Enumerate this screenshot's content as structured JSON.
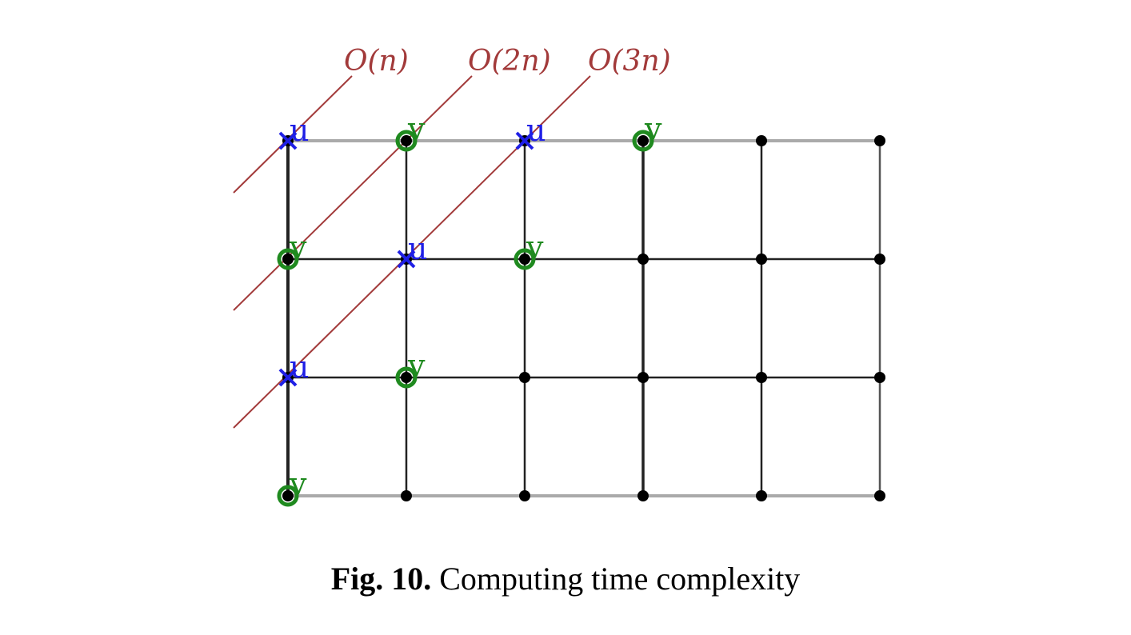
{
  "diagram": {
    "complexity_lines": [
      {
        "label": "O(n)"
      },
      {
        "label": "O(2n)"
      },
      {
        "label": "O(3n)"
      }
    ],
    "grid": {
      "columns": 6,
      "rows": 4
    },
    "vertex_markers": {
      "u": "u",
      "v": "v",
      "u_vertices": [
        [
          0,
          0
        ],
        [
          2,
          0
        ],
        [
          1,
          1
        ],
        [
          0,
          2
        ]
      ],
      "v_vertices": [
        [
          1,
          0
        ],
        [
          3,
          0
        ],
        [
          0,
          1
        ],
        [
          2,
          1
        ],
        [
          1,
          2
        ],
        [
          0,
          3
        ]
      ]
    },
    "colors": {
      "line": "#a23a3a",
      "u": "#1f1fe6",
      "v": "#1f8a1f",
      "node": "#000000",
      "edge": "#222222",
      "edge_light": "#aaaaaa"
    }
  },
  "caption": {
    "label": "Fig. 10.",
    "text": "Computing time complexity"
  }
}
